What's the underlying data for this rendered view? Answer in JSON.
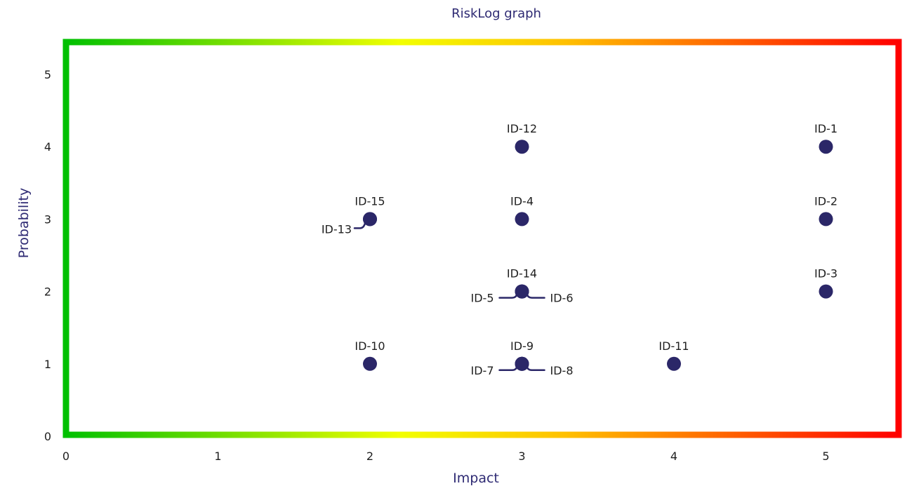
{
  "chart_data": {
    "type": "scatter",
    "title": "RiskLog graph",
    "xlabel": "Impact",
    "ylabel": "Probability",
    "xlim": [
      0,
      5.5
    ],
    "ylim": [
      0,
      5.5
    ],
    "x_ticks": [
      "0",
      "1",
      "2",
      "3",
      "4",
      "5"
    ],
    "y_ticks": [
      "0",
      "1",
      "2",
      "3",
      "4",
      "5"
    ],
    "gradient_colors": [
      "#00c000",
      "#f2ff00",
      "#ffc000",
      "#ff0000"
    ],
    "point_color": "#2b2768",
    "points": [
      {
        "id": "ID-1",
        "x": 5,
        "y": 4
      },
      {
        "id": "ID-2",
        "x": 5,
        "y": 3
      },
      {
        "id": "ID-3",
        "x": 5,
        "y": 2
      },
      {
        "id": "ID-4",
        "x": 3,
        "y": 3
      },
      {
        "id": "ID-5",
        "x": 3,
        "y": 2
      },
      {
        "id": "ID-6",
        "x": 3,
        "y": 2
      },
      {
        "id": "ID-7",
        "x": 3,
        "y": 1
      },
      {
        "id": "ID-8",
        "x": 3,
        "y": 1
      },
      {
        "id": "ID-9",
        "x": 3,
        "y": 1
      },
      {
        "id": "ID-10",
        "x": 2,
        "y": 1
      },
      {
        "id": "ID-11",
        "x": 4,
        "y": 1
      },
      {
        "id": "ID-12",
        "x": 3,
        "y": 4
      },
      {
        "id": "ID-13",
        "x": 2,
        "y": 3
      },
      {
        "id": "ID-14",
        "x": 3,
        "y": 2
      },
      {
        "id": "ID-15",
        "x": 2,
        "y": 3
      }
    ]
  }
}
